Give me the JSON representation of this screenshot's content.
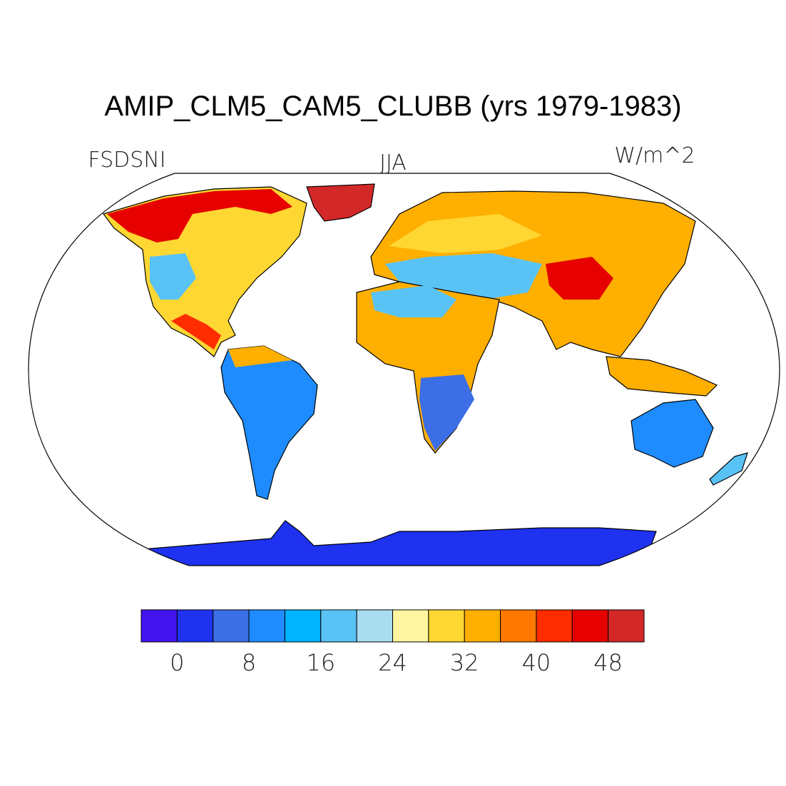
{
  "header": {
    "title": "AMIP_CLM5_CAM5_CLUBB (yrs 1979-1983)",
    "left": "FSDSNI",
    "center": "JJA",
    "right": "W/m^2"
  },
  "colorbar": {
    "colors": [
      "#4214f0",
      "#1e32f0",
      "#3c6ee6",
      "#1e8cff",
      "#00b4ff",
      "#5ac3f5",
      "#aadcf0",
      "#fff5a0",
      "#ffd732",
      "#ffaf00",
      "#ff7800",
      "#ff2d00",
      "#e60000",
      "#d22828"
    ],
    "ticks": [
      0,
      8,
      16,
      24,
      32,
      40,
      48
    ]
  }
}
